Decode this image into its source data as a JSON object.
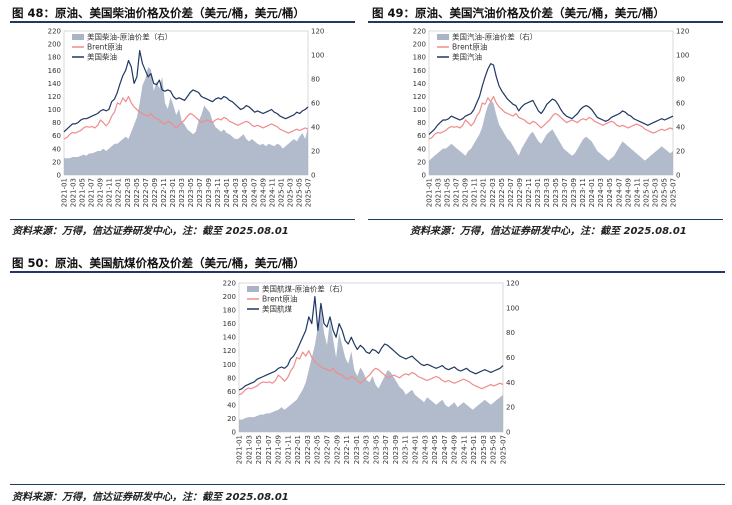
{
  "figures": [
    {
      "id": "fig48",
      "title": "图 48：原油、美国柴油价格及价差（美元/桶，美元/桶）",
      "source": "资料来源：万得，信达证券研发中心，注：截至 2025.08.01"
    },
    {
      "id": "fig49",
      "title": "图 49：原油、美国汽油价格及价差（美元/桶，美元/桶）",
      "source": "资料来源：万得，信达证券研发中心，注：截至 2025.08.01"
    },
    {
      "id": "fig50",
      "title": "图 50：原油、美国航煤价格及价差（美元/桶，美元/桶）",
      "source": "资料来源：万得，信达证券研发中心，注：截至 2025.08.01"
    }
  ],
  "chart_data": [
    {
      "type": "line",
      "chart_id": "fig48",
      "x_tick_labels": [
        "2021-01",
        "2021-03",
        "2021-05",
        "2021-07",
        "2021-09",
        "2021-11",
        "2022-01",
        "2022-03",
        "2022-05",
        "2022-07",
        "2022-09",
        "2022-11",
        "2023-01",
        "2023-03",
        "2023-05",
        "2023-07",
        "2023-09",
        "2023-11",
        "2024-01",
        "2024-03",
        "2024-05",
        "2024-07",
        "2024-09",
        "2024-11",
        "2025-01",
        "2025-03",
        "2025-05",
        "2025-07"
      ],
      "ylim_left": [
        0,
        220
      ],
      "yticks_left": [
        0,
        20,
        40,
        60,
        80,
        100,
        120,
        140,
        160,
        180,
        200,
        220
      ],
      "ylim_right": [
        0,
        120
      ],
      "yticks_right": [
        0,
        20,
        40,
        60,
        80,
        100,
        120
      ],
      "legend": [
        "美国柴油-原油价差（右）",
        "Brent原油",
        "美国柴油"
      ],
      "colors": {
        "spread": "#aab4c6",
        "brent": "#f08c8c",
        "product": "#1f3864"
      },
      "series": [
        {
          "name": "美国柴油-原油价差（右）",
          "axis": "right",
          "kind": "area",
          "values": [
            14,
            14,
            14,
            15,
            15,
            15,
            16,
            17,
            16,
            18,
            18,
            19,
            20,
            20,
            22,
            20,
            22,
            24,
            26,
            26,
            28,
            30,
            32,
            30,
            36,
            42,
            48,
            60,
            75,
            80,
            90,
            88,
            70,
            78,
            72,
            82,
            60,
            55,
            65,
            58,
            50,
            55,
            45,
            42,
            38,
            36,
            34,
            36,
            45,
            50,
            58,
            55,
            52,
            45,
            40,
            38,
            36,
            38,
            35,
            34,
            32,
            30,
            30,
            32,
            34,
            30,
            28,
            30,
            28,
            26,
            25,
            26,
            24,
            26,
            25,
            24,
            26,
            25,
            22,
            24,
            26,
            28,
            30,
            28,
            32,
            35,
            30,
            40
          ]
        },
        {
          "name": "Brent原油",
          "axis": "left",
          "kind": "line",
          "values": [
            55,
            57,
            62,
            65,
            64,
            66,
            68,
            72,
            74,
            73,
            74,
            72,
            76,
            84,
            80,
            75,
            80,
            90,
            96,
            110,
            108,
            118,
            112,
            120,
            110,
            104,
            100,
            96,
            94,
            92,
            90,
            94,
            88,
            86,
            84,
            80,
            78,
            82,
            80,
            76,
            72,
            76,
            80,
            84,
            90,
            94,
            92,
            88,
            84,
            80,
            82,
            84,
            82,
            80,
            84,
            86,
            84,
            88,
            86,
            82,
            80,
            78,
            76,
            78,
            80,
            82,
            80,
            76,
            74,
            76,
            74,
            72,
            74,
            76,
            78,
            76,
            74,
            70,
            68,
            66,
            64,
            66,
            68,
            70,
            68,
            70,
            72,
            70
          ]
        },
        {
          "name": "美国柴油",
          "axis": "left",
          "kind": "line",
          "values": [
            66,
            70,
            74,
            78,
            78,
            80,
            84,
            86,
            86,
            88,
            90,
            92,
            94,
            98,
            100,
            98,
            100,
            112,
            116,
            126,
            140,
            152,
            160,
            175,
            165,
            140,
            150,
            190,
            170,
            160,
            150,
            155,
            140,
            138,
            145,
            130,
            128,
            130,
            128,
            120,
            116,
            118,
            116,
            114,
            120,
            126,
            130,
            128,
            126,
            120,
            118,
            116,
            114,
            112,
            116,
            118,
            116,
            120,
            118,
            114,
            112,
            108,
            104,
            100,
            102,
            106,
            104,
            100,
            96,
            98,
            96,
            94,
            96,
            98,
            100,
            96,
            94,
            90,
            88,
            86,
            88,
            90,
            92,
            96,
            94,
            98,
            100,
            104
          ]
        }
      ]
    },
    {
      "type": "line",
      "chart_id": "fig49",
      "x_tick_labels": [
        "2021-01",
        "2021-03",
        "2021-05",
        "2021-07",
        "2021-09",
        "2021-11",
        "2022-01",
        "2022-03",
        "2022-05",
        "2022-07",
        "2022-09",
        "2022-11",
        "2023-01",
        "2023-03",
        "2023-05",
        "2023-07",
        "2023-09",
        "2023-11",
        "2024-01",
        "2024-03",
        "2024-05",
        "2024-07",
        "2024-09",
        "2024-11",
        "2025-01",
        "2025-03",
        "2025-05",
        "2025-07"
      ],
      "ylim_left": [
        0,
        220
      ],
      "yticks_left": [
        0,
        20,
        40,
        60,
        80,
        100,
        120,
        140,
        160,
        180,
        200,
        220
      ],
      "ylim_right": [
        0,
        120
      ],
      "yticks_right": [
        0,
        20,
        40,
        60,
        80,
        100,
        120
      ],
      "legend": [
        "美国汽油-原油价差（右）",
        "Brent原油",
        "美国汽油"
      ],
      "colors": {
        "spread": "#aab4c6",
        "brent": "#f08c8c",
        "product": "#1f3864"
      },
      "series": [
        {
          "name": "美国汽油-原油价差（右）",
          "axis": "right",
          "kind": "area",
          "values": [
            12,
            14,
            16,
            18,
            20,
            22,
            22,
            24,
            26,
            24,
            22,
            20,
            18,
            16,
            20,
            22,
            26,
            30,
            34,
            40,
            50,
            58,
            62,
            60,
            50,
            42,
            38,
            34,
            30,
            28,
            24,
            20,
            16,
            22,
            26,
            30,
            34,
            36,
            32,
            28,
            26,
            30,
            34,
            36,
            38,
            34,
            30,
            26,
            22,
            20,
            18,
            16,
            18,
            22,
            26,
            30,
            32,
            30,
            28,
            24,
            20,
            18,
            16,
            14,
            12,
            14,
            16,
            20,
            24,
            28,
            26,
            24,
            22,
            20,
            18,
            16,
            14,
            12,
            14,
            16,
            18,
            20,
            22,
            24,
            22,
            20,
            18,
            20
          ]
        },
        {
          "name": "Brent原油",
          "axis": "left",
          "kind": "line",
          "values": [
            55,
            57,
            62,
            65,
            64,
            66,
            68,
            72,
            74,
            73,
            74,
            72,
            76,
            84,
            80,
            75,
            80,
            90,
            96,
            110,
            108,
            118,
            112,
            120,
            110,
            104,
            100,
            96,
            94,
            92,
            90,
            94,
            88,
            86,
            84,
            80,
            78,
            82,
            80,
            76,
            72,
            76,
            80,
            84,
            90,
            94,
            92,
            88,
            84,
            80,
            82,
            84,
            82,
            80,
            84,
            86,
            84,
            88,
            86,
            82,
            80,
            78,
            76,
            78,
            80,
            82,
            80,
            76,
            74,
            76,
            74,
            72,
            74,
            76,
            78,
            76,
            74,
            70,
            68,
            66,
            64,
            66,
            68,
            70,
            68,
            70,
            72,
            70
          ]
        },
        {
          "name": "美国汽油",
          "axis": "left",
          "kind": "line",
          "values": [
            62,
            66,
            70,
            76,
            80,
            84,
            84,
            86,
            90,
            88,
            86,
            84,
            86,
            90,
            92,
            94,
            100,
            110,
            120,
            136,
            150,
            162,
            170,
            168,
            150,
            136,
            128,
            122,
            116,
            112,
            108,
            106,
            98,
            104,
            108,
            110,
            112,
            114,
            106,
            98,
            94,
            100,
            108,
            112,
            116,
            114,
            108,
            100,
            94,
            90,
            88,
            86,
            90,
            94,
            100,
            104,
            106,
            104,
            100,
            94,
            88,
            86,
            84,
            82,
            84,
            88,
            90,
            92,
            94,
            98,
            96,
            92,
            90,
            86,
            84,
            82,
            80,
            78,
            76,
            78,
            80,
            82,
            84,
            86,
            84,
            86,
            88,
            90
          ]
        }
      ]
    },
    {
      "type": "line",
      "chart_id": "fig50",
      "x_tick_labels": [
        "2021-01",
        "2021-03",
        "2021-05",
        "2021-07",
        "2021-09",
        "2021-11",
        "2022-01",
        "2022-03",
        "2022-05",
        "2022-07",
        "2022-09",
        "2022-11",
        "2023-01",
        "2023-03",
        "2023-05",
        "2023-07",
        "2023-09",
        "2023-11",
        "2024-01",
        "2024-03",
        "2024-05",
        "2024-07",
        "2024-09",
        "2024-11",
        "2025-01",
        "2025-03",
        "2025-05",
        "2025-07"
      ],
      "ylim_left": [
        0,
        220
      ],
      "yticks_left": [
        0,
        20,
        40,
        60,
        80,
        100,
        120,
        140,
        160,
        180,
        200,
        220
      ],
      "ylim_right": [
        0,
        120
      ],
      "yticks_right": [
        0,
        20,
        40,
        60,
        80,
        100,
        120
      ],
      "legend": [
        "美国航煤-原油价差（右）",
        "Brent原油",
        "美国航煤"
      ],
      "colors": {
        "spread": "#aab4c6",
        "brent": "#f08c8c",
        "product": "#1f3864"
      },
      "series": [
        {
          "name": "美国航煤-原油价差（右）",
          "axis": "right",
          "kind": "area",
          "values": [
            10,
            10,
            11,
            12,
            12,
            12,
            13,
            14,
            14,
            15,
            15,
            16,
            17,
            18,
            20,
            18,
            20,
            22,
            24,
            26,
            30,
            34,
            40,
            50,
            60,
            70,
            85,
            100,
            80,
            70,
            90,
            75,
            60,
            80,
            70,
            60,
            55,
            65,
            50,
            45,
            52,
            48,
            42,
            40,
            45,
            38,
            35,
            40,
            45,
            50,
            48,
            44,
            40,
            36,
            34,
            30,
            32,
            34,
            30,
            28,
            26,
            24,
            28,
            26,
            24,
            22,
            24,
            26,
            22,
            20,
            22,
            24,
            20,
            22,
            24,
            22,
            20,
            18,
            20,
            22,
            24,
            26,
            24,
            22,
            24,
            26,
            28,
            30
          ]
        },
        {
          "name": "Brent原油",
          "axis": "left",
          "kind": "line",
          "values": [
            55,
            57,
            62,
            65,
            64,
            66,
            68,
            72,
            74,
            73,
            74,
            72,
            76,
            84,
            80,
            75,
            80,
            90,
            96,
            110,
            108,
            118,
            112,
            120,
            110,
            104,
            100,
            96,
            94,
            92,
            90,
            94,
            88,
            86,
            84,
            80,
            78,
            82,
            80,
            76,
            72,
            76,
            80,
            84,
            90,
            94,
            92,
            88,
            84,
            80,
            82,
            84,
            82,
            80,
            84,
            86,
            84,
            88,
            86,
            82,
            80,
            78,
            76,
            78,
            80,
            82,
            80,
            76,
            74,
            76,
            74,
            72,
            74,
            76,
            78,
            76,
            74,
            70,
            68,
            66,
            64,
            66,
            68,
            70,
            68,
            70,
            72,
            70
          ]
        },
        {
          "name": "美国航煤",
          "axis": "left",
          "kind": "line",
          "values": [
            62,
            64,
            68,
            70,
            72,
            74,
            78,
            80,
            82,
            84,
            86,
            88,
            90,
            94,
            96,
            94,
            98,
            108,
            112,
            120,
            130,
            140,
            150,
            170,
            160,
            200,
            150,
            190,
            160,
            155,
            170,
            150,
            140,
            160,
            150,
            135,
            130,
            140,
            130,
            122,
            128,
            124,
            118,
            116,
            122,
            120,
            116,
            124,
            130,
            128,
            124,
            120,
            116,
            112,
            110,
            108,
            110,
            112,
            108,
            104,
            100,
            98,
            100,
            98,
            96,
            94,
            96,
            98,
            94,
            92,
            94,
            96,
            92,
            90,
            92,
            94,
            90,
            88,
            86,
            88,
            90,
            92,
            90,
            88,
            90,
            92,
            94,
            98
          ]
        }
      ]
    }
  ]
}
